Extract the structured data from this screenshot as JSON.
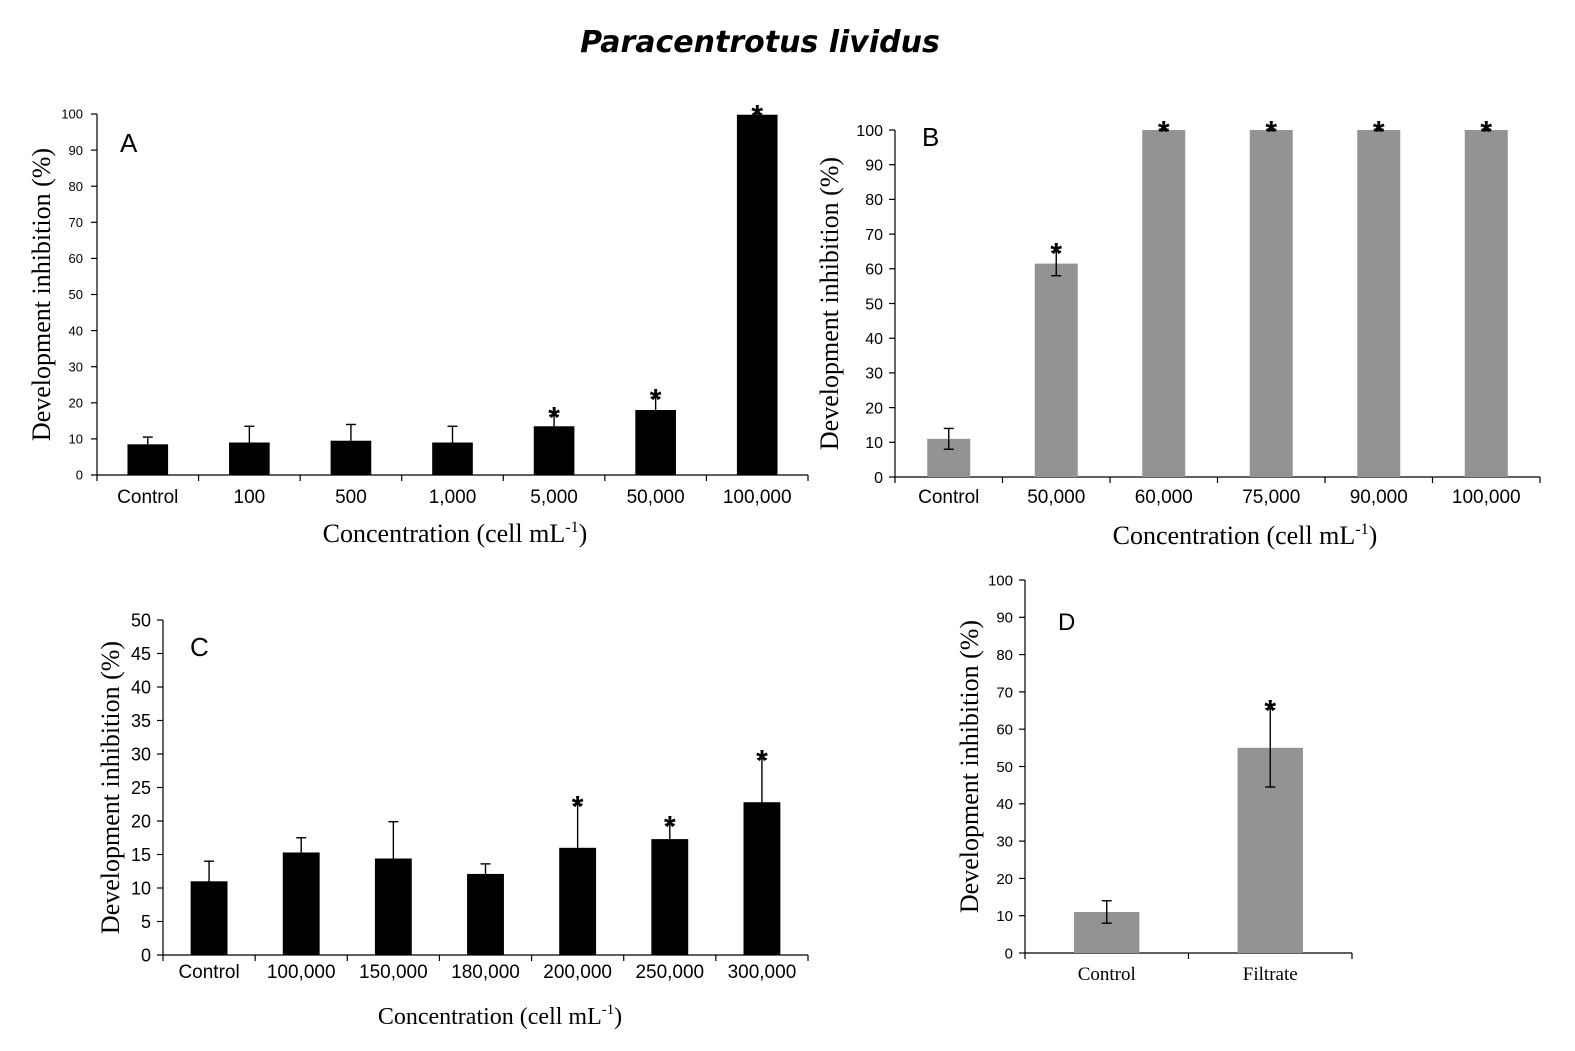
{
  "figure": {
    "title": "Paracentrotus lividus"
  },
  "chart_data": [
    {
      "id": "A",
      "type": "bar",
      "panel_label": "A",
      "title": "",
      "xlabel": "Concentration (cell mL",
      "xlabel_sup": "-1",
      "xlabel_tail": ")",
      "ylabel": "Development inhibition  (%)",
      "ylim": [
        0,
        100
      ],
      "yticks": [
        0,
        10,
        20,
        30,
        40,
        50,
        60,
        70,
        80,
        90,
        100
      ],
      "bar_color": "#000000",
      "error_style": "upper",
      "categories": [
        "Control",
        "100",
        "500",
        "1,000",
        "5,000",
        "50,000",
        "100,000"
      ],
      "values": [
        8.5,
        9,
        9.5,
        9,
        13.5,
        18,
        99.8
      ],
      "errors": [
        2,
        4.5,
        4.5,
        4.5,
        3,
        3.5,
        0.3
      ],
      "significant": [
        false,
        false,
        false,
        false,
        true,
        true,
        true
      ],
      "significance_marker": "*",
      "grid": false,
      "legend": "none"
    },
    {
      "id": "B",
      "type": "bar",
      "panel_label": "B",
      "title": "",
      "xlabel": "Concentration (cell mL",
      "xlabel_sup": "-1",
      "xlabel_tail": ")",
      "ylabel": "Development inhibition  (%)",
      "ylim": [
        0,
        100
      ],
      "yticks": [
        0,
        10,
        20,
        30,
        40,
        50,
        60,
        70,
        80,
        90,
        100
      ],
      "bar_color": "#939393",
      "error_style": "both",
      "categories": [
        "Control",
        "50,000",
        "60,000",
        "75,000",
        "90,000",
        "100,000"
      ],
      "values": [
        11,
        61.5,
        100,
        100,
        100,
        100
      ],
      "errors": [
        3,
        3.5,
        0.2,
        0.2,
        0.2,
        0.2
      ],
      "significant": [
        false,
        true,
        true,
        true,
        true,
        true
      ],
      "significance_marker": "*",
      "grid": false,
      "legend": "none"
    },
    {
      "id": "C",
      "type": "bar",
      "panel_label": "C",
      "title": "",
      "xlabel": "Concentration (cell mL",
      "xlabel_sup": "-1",
      "xlabel_tail": ")",
      "ylabel": "Development inhibition  (%)",
      "ylim": [
        0,
        50
      ],
      "yticks": [
        0,
        5,
        10,
        15,
        20,
        25,
        30,
        35,
        40,
        45,
        50
      ],
      "bar_color": "#000000",
      "error_style": "both",
      "categories": [
        "Control",
        "100,000",
        "150,000",
        "180,000",
        "200,000",
        "250,000",
        "300,000"
      ],
      "values": [
        11,
        15.3,
        14.4,
        12.1,
        16,
        17.3,
        22.8
      ],
      "errors": [
        3,
        2.2,
        5.5,
        1.5,
        6.5,
        2.2,
        6.5
      ],
      "significant": [
        false,
        false,
        false,
        false,
        true,
        true,
        true
      ],
      "significance_marker": "*",
      "grid": false,
      "legend": "none"
    },
    {
      "id": "D",
      "type": "bar",
      "panel_label": "D",
      "title": "",
      "xlabel": "",
      "xlabel_sup": "",
      "xlabel_tail": "",
      "ylabel": "Development inhibition  (%)",
      "ylim": [
        0,
        100
      ],
      "yticks": [
        0,
        10,
        20,
        30,
        40,
        50,
        60,
        70,
        80,
        90,
        100
      ],
      "bar_color": "#939393",
      "error_style": "both",
      "categories": [
        "Control",
        "Filtrate"
      ],
      "values": [
        11,
        55
      ],
      "errors": [
        3,
        10.5
      ],
      "significant": [
        false,
        true
      ],
      "significance_marker": "*",
      "grid": false,
      "legend": "none"
    }
  ]
}
